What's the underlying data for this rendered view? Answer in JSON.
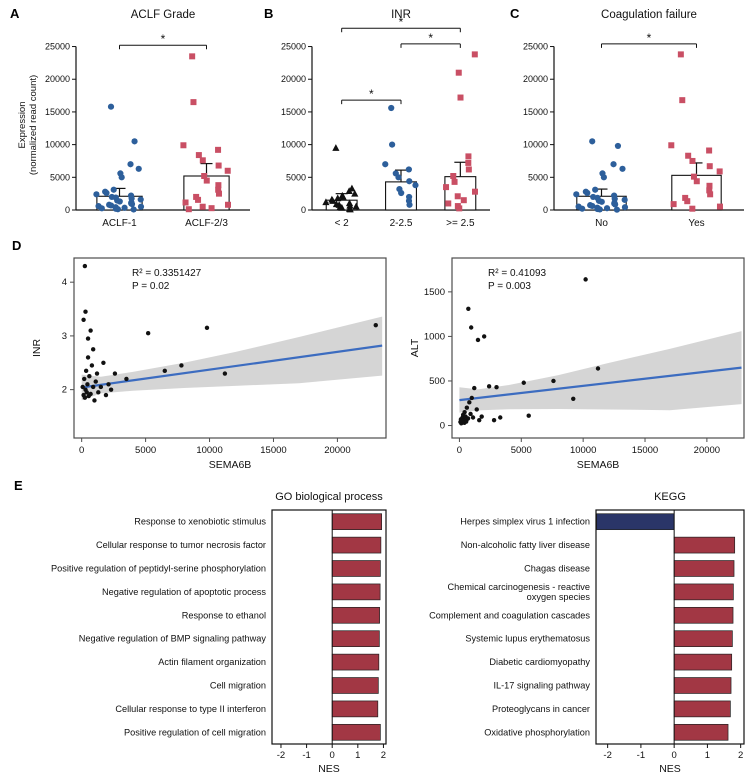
{
  "figure": {
    "panels": [
      "A",
      "B",
      "C",
      "D",
      "E"
    ],
    "colors": {
      "blue_marker": "#2d5f9b",
      "red_marker": "#c94f64",
      "black_marker": "#111111",
      "regression_line": "#3c6cc0",
      "confidence_band": "#cbcbcb",
      "bar_positive": "#a23744",
      "bar_negative": "#2a3568"
    }
  },
  "chart_data": [
    {
      "id": "A",
      "type": "dotbar",
      "title": "ACLF Grade",
      "ylabel_lines": [
        "Expression",
        "(normalized read count)"
      ],
      "ylim": [
        0,
        26000
      ],
      "yticks": [
        0,
        5000,
        10000,
        15000,
        20000,
        25000
      ],
      "groups": [
        {
          "label": "ACLF-1",
          "marker": "circle",
          "color": "#2d5f9b",
          "mean": 2100,
          "sem_high": 3300,
          "points": [
            15800,
            10500,
            7000,
            6300,
            5600,
            5000,
            3100,
            2800,
            2600,
            2400,
            2200,
            2000,
            1900,
            1750,
            1600,
            1450,
            1300,
            1150,
            1000,
            900,
            800,
            700,
            600,
            500,
            420,
            340,
            260,
            180,
            120,
            80
          ]
        },
        {
          "label": "ACLF-2/3",
          "marker": "square",
          "color": "#c94f64",
          "mean": 5200,
          "sem_high": 7100,
          "points": [
            23500,
            16500,
            9900,
            9200,
            8400,
            7600,
            6800,
            6000,
            5200,
            4500,
            3800,
            3100,
            2500,
            2000,
            1550,
            1150,
            800,
            500,
            280,
            120
          ]
        }
      ],
      "significance": [
        {
          "between": [
            0,
            1
          ],
          "y": 25200,
          "label": "*"
        }
      ]
    },
    {
      "id": "B",
      "type": "dotbar",
      "title": "INR",
      "ylim": [
        0,
        26000
      ],
      "yticks": [
        0,
        5000,
        10000,
        15000,
        20000,
        25000
      ],
      "groups": [
        {
          "label": "< 2",
          "marker": "triangle",
          "color": "#111111",
          "mean": 1500,
          "sem_high": 2500,
          "points": [
            9500,
            3300,
            2900,
            2500,
            2200,
            2000,
            1800,
            1600,
            1400,
            1200,
            1050,
            900,
            780,
            660,
            550,
            450,
            350,
            260,
            170,
            90
          ]
        },
        {
          "label": "2-2.5",
          "marker": "circle",
          "color": "#2d5f9b",
          "mean": 4300,
          "sem_high": 6100,
          "points": [
            15600,
            10000,
            7000,
            6200,
            5600,
            5000,
            4400,
            3800,
            3200,
            2600,
            2000,
            1400,
            800
          ]
        },
        {
          "label": ">= 2.5",
          "marker": "square",
          "color": "#c94f64",
          "mean": 5100,
          "sem_high": 7300,
          "points": [
            23800,
            21000,
            17200,
            8200,
            7200,
            6200,
            5200,
            4300,
            3500,
            2800,
            2100,
            1500,
            1000,
            600,
            250
          ]
        }
      ],
      "significance": [
        {
          "between": [
            0,
            2
          ],
          "y": 27800,
          "label": "*"
        },
        {
          "between": [
            1,
            2
          ],
          "y": 25400,
          "label": "*"
        },
        {
          "between": [
            0,
            1
          ],
          "y": 16800,
          "label": "*"
        }
      ]
    },
    {
      "id": "C",
      "type": "dotbar",
      "title": "Coagulation failure",
      "ylim": [
        0,
        26000
      ],
      "yticks": [
        0,
        5000,
        10000,
        15000,
        20000,
        25000
      ],
      "groups": [
        {
          "label": "No",
          "marker": "circle",
          "color": "#2d5f9b",
          "mean": 2100,
          "sem_high": 3200,
          "points": [
            10500,
            9800,
            7000,
            6300,
            5600,
            5000,
            3100,
            2800,
            2600,
            2400,
            2200,
            2000,
            1850,
            1700,
            1550,
            1400,
            1250,
            1100,
            980,
            860,
            740,
            620,
            520,
            430,
            350,
            270,
            200,
            140,
            90,
            50
          ]
        },
        {
          "label": "Yes",
          "marker": "square",
          "color": "#c94f64",
          "mean": 5300,
          "sem_high": 7200,
          "points": [
            23800,
            16800,
            9900,
            9100,
            8300,
            7500,
            6700,
            5900,
            5100,
            4400,
            3700,
            3000,
            2400,
            1850,
            1350,
            900,
            520,
            200
          ]
        }
      ],
      "significance": [
        {
          "between": [
            0,
            1
          ],
          "y": 25400,
          "label": "*"
        }
      ]
    },
    {
      "id": "D1",
      "type": "regression",
      "xlabel": "SEMA6B",
      "ylabel": "INR",
      "annotation": [
        "R² = 0.3351427",
        "P = 0.02"
      ],
      "xlim": [
        -600,
        23800
      ],
      "ylim": [
        1.1,
        4.45
      ],
      "xticks": [
        0,
        5000,
        10000,
        15000,
        20000
      ],
      "yticks": [
        2,
        3,
        4
      ],
      "points": [
        [
          80,
          2.05
        ],
        [
          150,
          1.9
        ],
        [
          200,
          2.2
        ],
        [
          250,
          1.85
        ],
        [
          300,
          2.0
        ],
        [
          350,
          2.35
        ],
        [
          400,
          1.95
        ],
        [
          450,
          2.1
        ],
        [
          500,
          2.6
        ],
        [
          550,
          1.88
        ],
        [
          600,
          2.25
        ],
        [
          700,
          1.92
        ],
        [
          800,
          2.45
        ],
        [
          900,
          2.05
        ],
        [
          1000,
          1.8
        ],
        [
          1100,
          2.15
        ],
        [
          1200,
          2.3
        ],
        [
          1300,
          1.95
        ],
        [
          1500,
          2.05
        ],
        [
          1700,
          2.5
        ],
        [
          1900,
          1.9
        ],
        [
          2100,
          2.1
        ],
        [
          2300,
          2.0
        ],
        [
          2600,
          2.3
        ],
        [
          150,
          3.3
        ],
        [
          300,
          3.45
        ],
        [
          500,
          2.95
        ],
        [
          700,
          3.1
        ],
        [
          250,
          4.3
        ],
        [
          900,
          2.75
        ],
        [
          3500,
          2.2
        ],
        [
          5200,
          3.05
        ],
        [
          6500,
          2.35
        ],
        [
          7800,
          2.45
        ],
        [
          9800,
          3.15
        ],
        [
          11200,
          2.3
        ],
        [
          23000,
          3.2
        ]
      ],
      "line": {
        "x": [
          0,
          23500
        ],
        "y": [
          2.04,
          2.82
        ]
      },
      "band": {
        "x": [
          0,
          1500,
          4000,
          8000,
          12000,
          17000,
          23500
        ],
        "upper": [
          2.28,
          2.24,
          2.33,
          2.5,
          2.7,
          2.98,
          3.36
        ],
        "lower": [
          1.8,
          1.93,
          1.98,
          2.03,
          2.07,
          2.12,
          2.26
        ]
      }
    },
    {
      "id": "D2",
      "type": "regression",
      "xlabel": "SEMA6B",
      "ylabel": "ALT",
      "annotation": [
        "R² = 0.41093",
        "P = 0.003"
      ],
      "xlim": [
        -600,
        23000
      ],
      "ylim": [
        -140,
        1880
      ],
      "xticks": [
        0,
        5000,
        10000,
        15000,
        20000
      ],
      "yticks": [
        0,
        500,
        1000,
        1500
      ],
      "points": [
        [
          80,
          40
        ],
        [
          120,
          70
        ],
        [
          150,
          25
        ],
        [
          180,
          55
        ],
        [
          250,
          90
        ],
        [
          300,
          120
        ],
        [
          350,
          60
        ],
        [
          400,
          30
        ],
        [
          420,
          150
        ],
        [
          500,
          100
        ],
        [
          550,
          45
        ],
        [
          600,
          200
        ],
        [
          650,
          75
        ],
        [
          700,
          80
        ],
        [
          800,
          260
        ],
        [
          900,
          130
        ],
        [
          1000,
          310
        ],
        [
          1100,
          90
        ],
        [
          1200,
          420
        ],
        [
          1400,
          180
        ],
        [
          1600,
          60
        ],
        [
          1800,
          100
        ],
        [
          2000,
          1000
        ],
        [
          950,
          1100
        ],
        [
          720,
          1310
        ],
        [
          1500,
          960
        ],
        [
          2400,
          440
        ],
        [
          3000,
          430
        ],
        [
          2800,
          60
        ],
        [
          3300,
          90
        ],
        [
          5200,
          480
        ],
        [
          5600,
          110
        ],
        [
          7600,
          500
        ],
        [
          9200,
          300
        ],
        [
          11200,
          640
        ],
        [
          10200,
          1640
        ]
      ],
      "line": {
        "x": [
          0,
          22800
        ],
        "y": [
          285,
          650
        ]
      },
      "band": {
        "x": [
          0,
          1500,
          4000,
          8000,
          12000,
          17000,
          22800
        ],
        "upper": [
          430,
          405,
          455,
          565,
          700,
          860,
          1060
        ],
        "lower": [
          145,
          170,
          182,
          186,
          180,
          172,
          240
        ]
      }
    },
    {
      "id": "E1",
      "type": "hbar",
      "title": "GO biological process",
      "xlabel": "NES",
      "xlim": [
        -2.35,
        2.1
      ],
      "xticks": [
        -2,
        -1,
        0,
        1,
        2
      ],
      "bars": [
        {
          "label": "Response to xenobiotic stimulus",
          "value": 1.93
        },
        {
          "label": "Cellular response to tumor necrosis factor",
          "value": 1.9
        },
        {
          "label": "Positive regulation of peptidyl-serine phosphorylation",
          "value": 1.88
        },
        {
          "label": "Negative regulation of apoptotic process",
          "value": 1.87
        },
        {
          "label": "Response to ethanol",
          "value": 1.85
        },
        {
          "label": "Negative regulation of BMP signaling pathway",
          "value": 1.84
        },
        {
          "label": "Actin filament organization",
          "value": 1.82
        },
        {
          "label": "Cell migration",
          "value": 1.8
        },
        {
          "label": "Cellular response to type II interferon",
          "value": 1.78
        },
        {
          "label": "Positive regulation of cell migration",
          "value": 1.88
        }
      ]
    },
    {
      "id": "E2",
      "type": "hbar",
      "title": "KEGG",
      "xlabel": "NES",
      "xlim": [
        -2.35,
        2.1
      ],
      "xticks": [
        -2,
        -1,
        0,
        1,
        2
      ],
      "bars": [
        {
          "label": "Herpes simplex virus 1 infection",
          "value": -2.33
        },
        {
          "label": "Non-alcoholic fatty liver disease",
          "value": 1.82
        },
        {
          "label": "Chagas disease",
          "value": 1.8
        },
        {
          "label": "Chemical carcinogenesis - reactive\noxygen species",
          "value": 1.78
        },
        {
          "label": "Complement and coagulation cascades",
          "value": 1.77
        },
        {
          "label": "Systemic lupus erythematosus",
          "value": 1.75
        },
        {
          "label": "Diabetic cardiomyopathy",
          "value": 1.73
        },
        {
          "label": "IL-17 signaling pathway",
          "value": 1.71
        },
        {
          "label": "Proteoglycans in cancer",
          "value": 1.69
        },
        {
          "label": "Oxidative phosphorylation",
          "value": 1.62
        }
      ]
    }
  ]
}
